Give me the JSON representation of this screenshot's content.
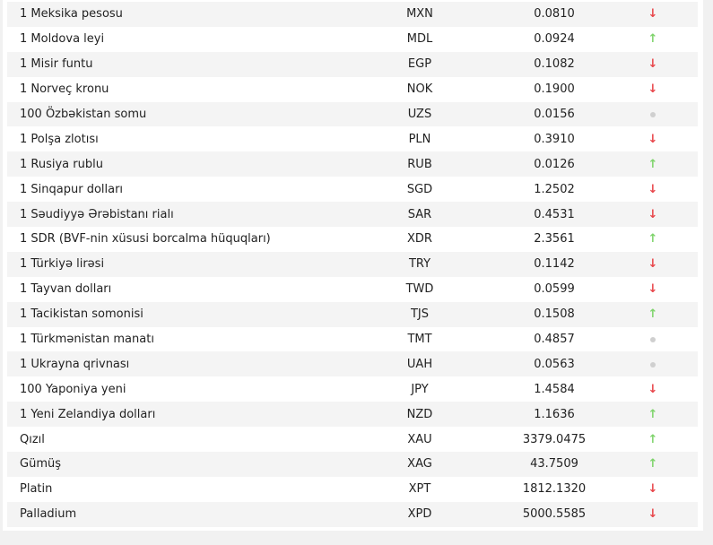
{
  "colors": {
    "up": "#7ed36b",
    "down": "#e8454a",
    "neutral": "#cfcfcf"
  },
  "rows": [
    {
      "name": "1 Meksika pesosu",
      "code": "MXN",
      "value": "0.0810",
      "trend": "down"
    },
    {
      "name": "1 Moldova leyi",
      "code": "MDL",
      "value": "0.0924",
      "trend": "up"
    },
    {
      "name": "1 Misir funtu",
      "code": "EGP",
      "value": "0.1082",
      "trend": "down"
    },
    {
      "name": "1 Norveç kronu",
      "code": "NOK",
      "value": "0.1900",
      "trend": "down"
    },
    {
      "name": "100 Özbəkistan somu",
      "code": "UZS",
      "value": "0.0156",
      "trend": "neutral"
    },
    {
      "name": "1 Polşa zlotısı",
      "code": "PLN",
      "value": "0.3910",
      "trend": "down"
    },
    {
      "name": "1 Rusiya rublu",
      "code": "RUB",
      "value": "0.0126",
      "trend": "up"
    },
    {
      "name": "1 Sinqapur dolları",
      "code": "SGD",
      "value": "1.2502",
      "trend": "down"
    },
    {
      "name": "1 Səudiyyə Ərəbistanı rialı",
      "code": "SAR",
      "value": "0.4531",
      "trend": "down"
    },
    {
      "name": "1 SDR (BVF-nin xüsusi borcalma hüquqları)",
      "code": "XDR",
      "value": "2.3561",
      "trend": "up"
    },
    {
      "name": "1 Türkiyə lirəsi",
      "code": "TRY",
      "value": "0.1142",
      "trend": "down"
    },
    {
      "name": "1 Tayvan dolları",
      "code": "TWD",
      "value": "0.0599",
      "trend": "down"
    },
    {
      "name": "1 Tacikistan somonisi",
      "code": "TJS",
      "value": "0.1508",
      "trend": "up"
    },
    {
      "name": "1 Türkmənistan manatı",
      "code": "TMT",
      "value": "0.4857",
      "trend": "neutral"
    },
    {
      "name": "1 Ukrayna qrivnası",
      "code": "UAH",
      "value": "0.0563",
      "trend": "neutral"
    },
    {
      "name": "100 Yaponiya yeni",
      "code": "JPY",
      "value": "1.4584",
      "trend": "down"
    },
    {
      "name": "1 Yeni Zelandiya dolları",
      "code": "NZD",
      "value": "1.1636",
      "trend": "up"
    },
    {
      "name": "Qızıl",
      "code": "XAU",
      "value": "3379.0475",
      "trend": "up"
    },
    {
      "name": "Gümüş",
      "code": "XAG",
      "value": "43.7509",
      "trend": "up"
    },
    {
      "name": "Platin",
      "code": "XPT",
      "value": "1812.1320",
      "trend": "down"
    },
    {
      "name": "Palladium",
      "code": "XPD",
      "value": "5000.5585",
      "trend": "down"
    }
  ]
}
